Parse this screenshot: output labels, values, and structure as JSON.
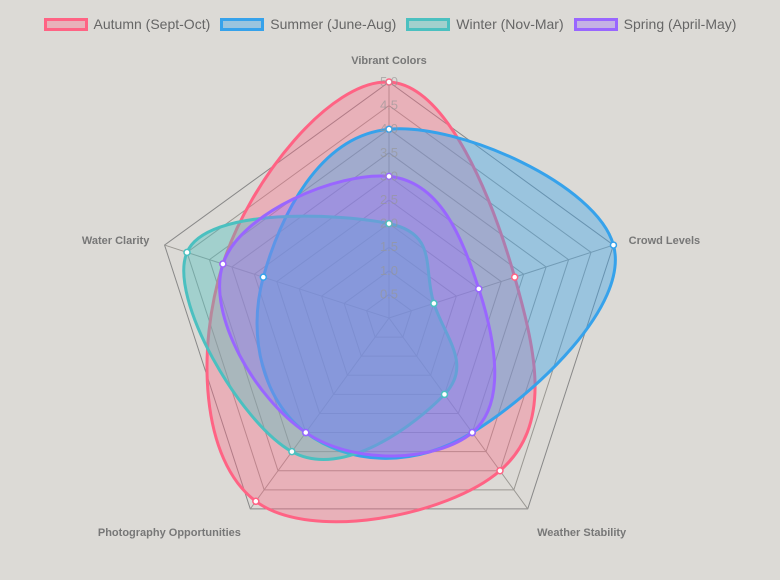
{
  "chart_data": {
    "type": "radar",
    "axes": [
      "Vibrant Colors",
      "Crowd Levels",
      "Weather Stability",
      "Photography Opportunities",
      "Water Clarity"
    ],
    "scale": {
      "min": 0,
      "max": 5,
      "step": 0.5,
      "ticks": [
        "0.5",
        "1.0",
        "1.5",
        "2.0",
        "2.5",
        "3.0",
        "3.5",
        "4.0",
        "4.5",
        "5.0"
      ]
    },
    "legend_position": "top",
    "series": [
      {
        "name": "Autumn (Sept-Oct)",
        "values": [
          5.0,
          2.8,
          4.0,
          4.8,
          3.7
        ],
        "color": "#ff6384",
        "fill": "rgba(255,99,132,0.35)"
      },
      {
        "name": "Summer (June-Aug)",
        "values": [
          4.0,
          5.0,
          3.0,
          3.0,
          2.8
        ],
        "color": "#36a2eb",
        "fill": "rgba(54,162,235,0.40)"
      },
      {
        "name": "Winter (Nov-Mar)",
        "values": [
          2.0,
          1.0,
          2.0,
          3.5,
          4.5
        ],
        "color": "#4bc0c0",
        "fill": "rgba(75,192,192,0.40)"
      },
      {
        "name": "Spring (April-May)",
        "values": [
          3.0,
          2.0,
          3.0,
          3.0,
          3.7
        ],
        "color": "#9966ff",
        "fill": "rgba(153,102,255,0.35)"
      }
    ]
  }
}
